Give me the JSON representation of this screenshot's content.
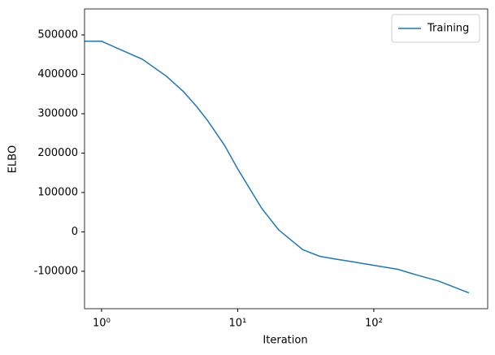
{
  "chart_data": {
    "type": "line",
    "xlabel": "Iteration",
    "ylabel": "ELBO",
    "x": [
      0.75,
      1,
      2,
      3,
      4,
      5,
      6,
      8,
      10,
      15,
      20,
      30,
      40,
      50,
      70,
      100,
      150,
      200,
      300,
      500
    ],
    "series": [
      {
        "name": "Training",
        "color": "#1f77b4",
        "values": [
          484000,
          484000,
          438000,
          395000,
          356000,
          318000,
          283000,
          220000,
          160000,
          60000,
          5000,
          -45000,
          -62000,
          -68000,
          -76000,
          -85000,
          -95000,
          -108000,
          -125000,
          -155000
        ]
      }
    ],
    "xscale": "log",
    "xlim": [
      0.75,
      686
    ],
    "xticks": [
      {
        "value": 1,
        "label": "10⁰"
      },
      {
        "value": 10,
        "label": "10¹"
      },
      {
        "value": 100,
        "label": "10²"
      }
    ],
    "ylim": [
      -195000,
      566000
    ],
    "yticks": [
      -100000,
      0,
      100000,
      200000,
      300000,
      400000,
      500000
    ],
    "legend": "upper right"
  }
}
